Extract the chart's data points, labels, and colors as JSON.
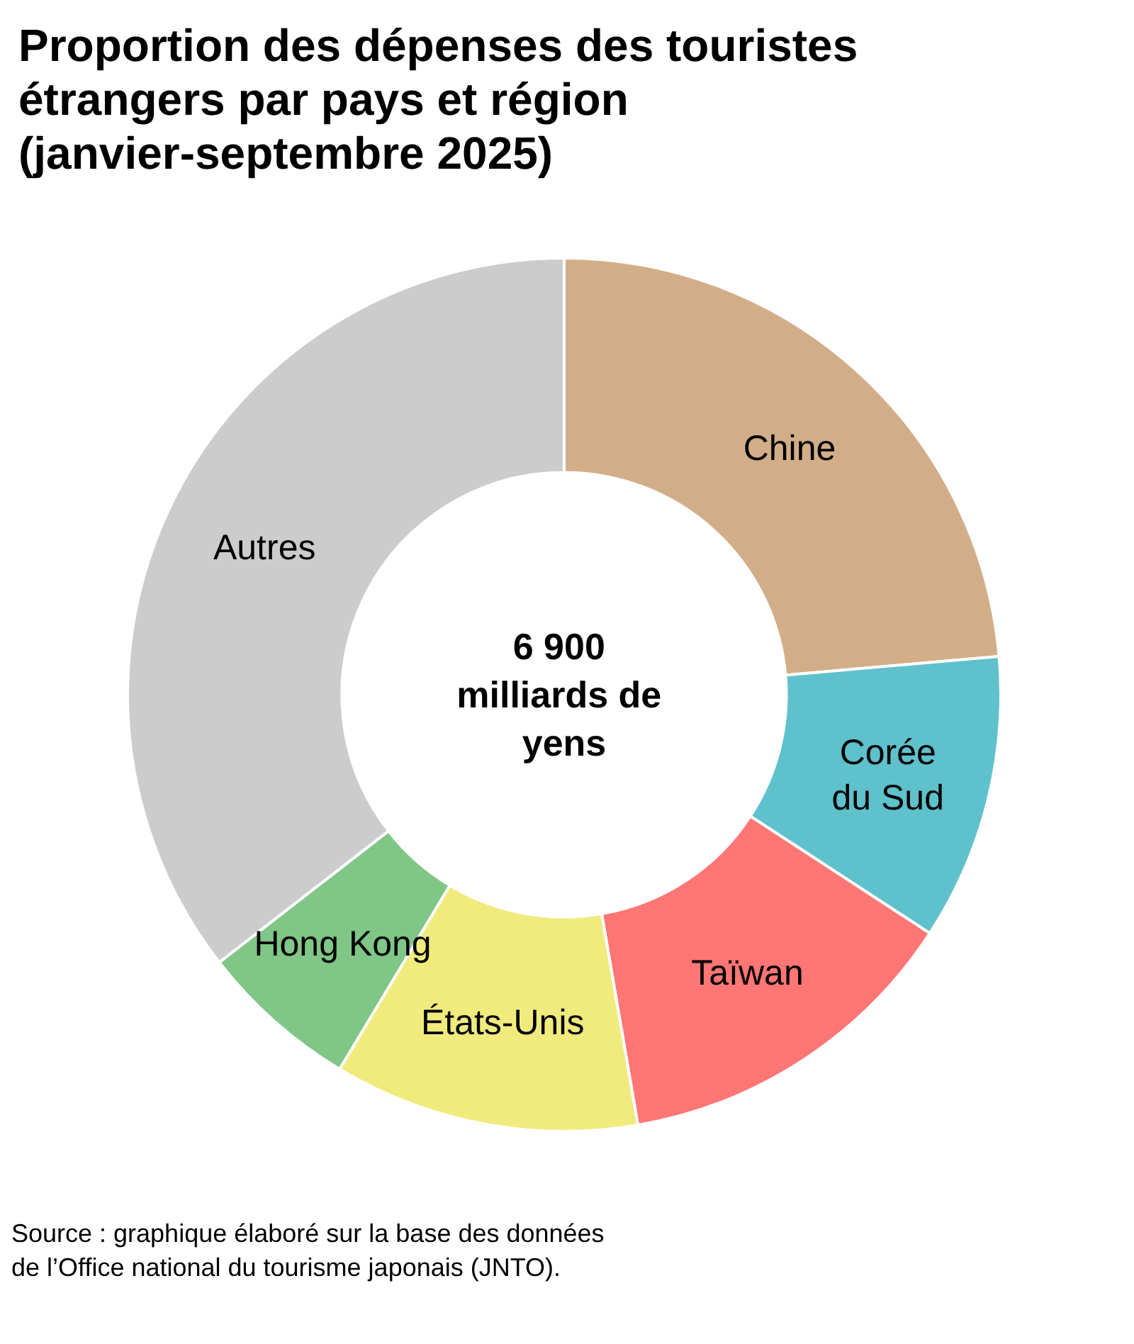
{
  "chart_data": {
    "type": "donut",
    "title": "Proportion des dépenses des touristes étrangers par pays et région (janvier-septembre 2025)",
    "categories": [
      "Chine",
      "Corée du Sud",
      "Taïwan",
      "États-Unis",
      "Hong Kong",
      "Autres"
    ],
    "values": [
      23.6,
      10.6,
      13.1,
      11.3,
      5.9,
      35.5
    ],
    "colors": [
      "#d2ae88",
      "#5fc1cc",
      "#ff7674",
      "#f1eb7e",
      "#80c686",
      "#cccccc"
    ],
    "annotations": [
      "6 900 milliards de yens",
      "Source : graphique élaboré sur la base des données de l’Office national du tourisme japonais (JNTO)."
    ],
    "legend": false
  }
}
